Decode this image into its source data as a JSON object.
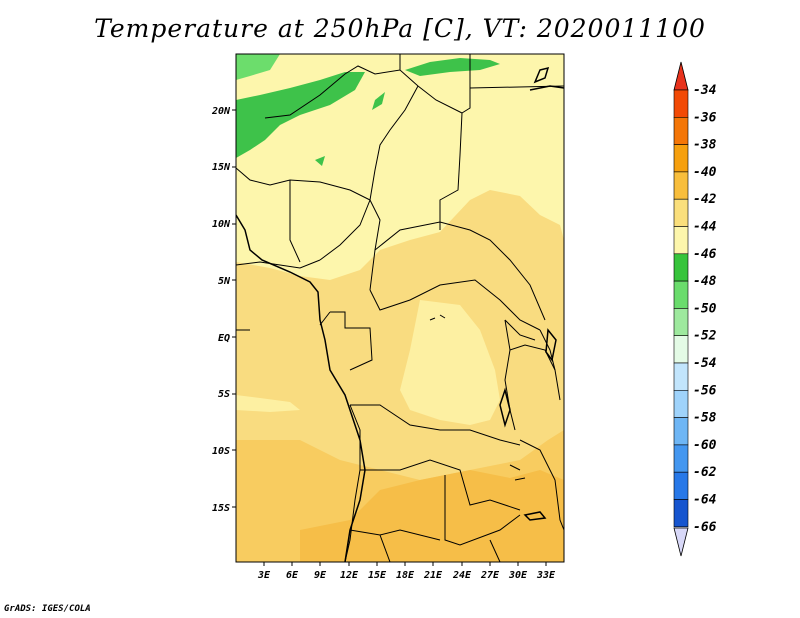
{
  "title": "Temperature at 250hPa [C], VT: 2020011100",
  "credit": "GrADS: IGES/COLA",
  "lat_labels": [
    "20N",
    "15N",
    "10N",
    "5N",
    "EQ",
    "5S",
    "10S",
    "15S"
  ],
  "lon_labels": [
    "3E",
    "6E",
    "9E",
    "12E",
    "15E",
    "18E",
    "21E",
    "24E",
    "27E",
    "30E",
    "33E"
  ],
  "legend": {
    "labels": [
      "-34",
      "-36",
      "-38",
      "-40",
      "-42",
      "-44",
      "-46",
      "-48",
      "-50",
      "-52",
      "-54",
      "-56",
      "-58",
      "-60",
      "-62",
      "-64",
      "-66"
    ],
    "colors": [
      "#f24a05",
      "#f47607",
      "#f6a00e",
      "#f8be3c",
      "#fadf7c",
      "#fdf6ac",
      "#37c43b",
      "#6adc6c",
      "#9ee99e",
      "#e4fbe6",
      "#c2e5fc",
      "#9fd3fb",
      "#6eb6f5",
      "#4497f0",
      "#2778e8",
      "#1655cf",
      "#0a2a9a",
      "#0a0a60"
    ],
    "top_color": "#e8321c",
    "bottom_color": "#d8d8f8"
  },
  "palette": {
    "dominant_light": "#fdf6ac",
    "mid": "#f9dc80",
    "warm": "#f6bf48",
    "green_dark": "#3ec24a",
    "green_light": "#6cdd6c"
  }
}
